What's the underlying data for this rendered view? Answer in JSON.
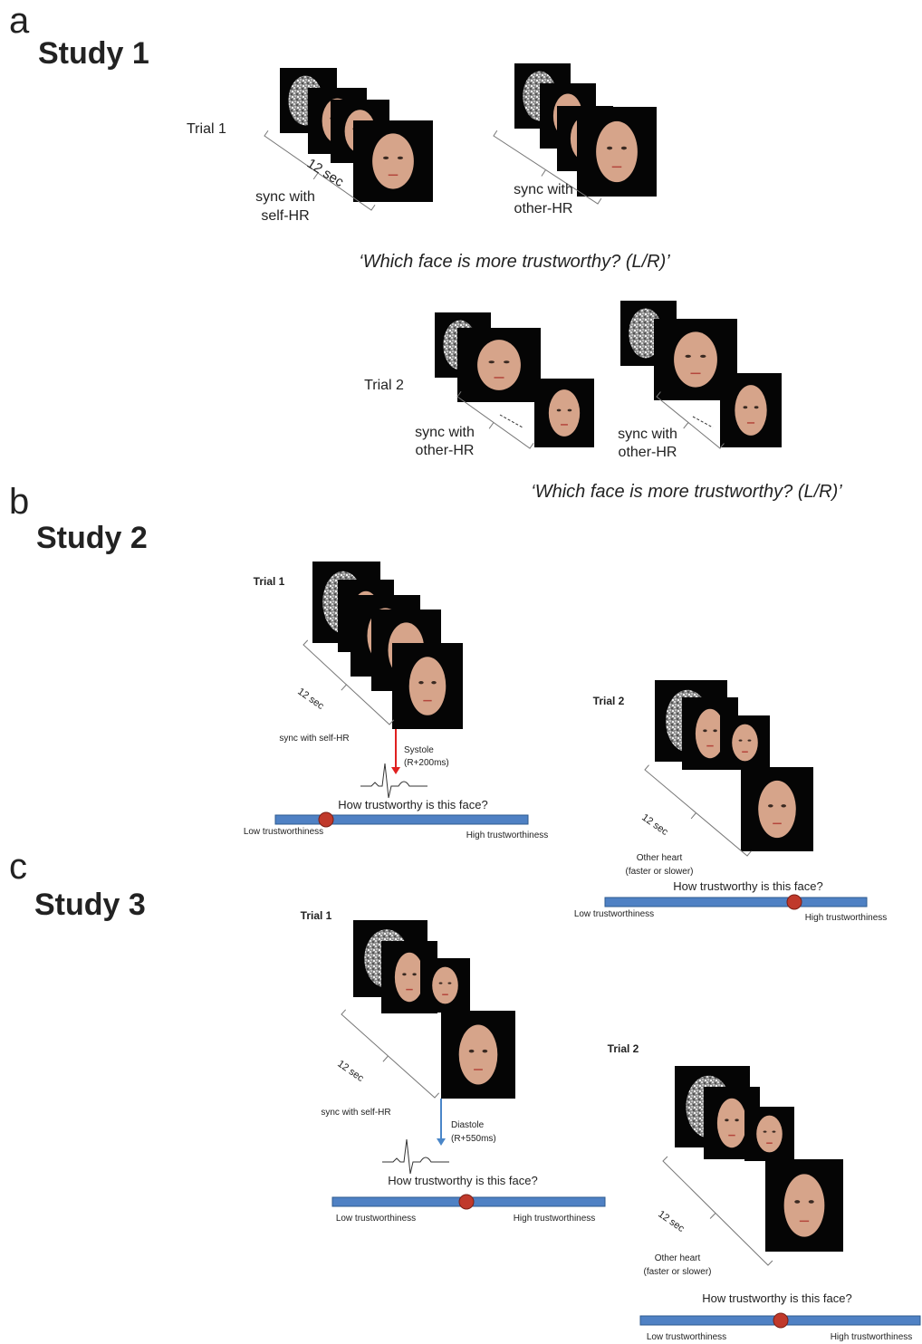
{
  "panels": [
    {
      "letter": "a",
      "title": "Study 1",
      "trial1": {
        "label": "Trial 1",
        "duration": "12 sec",
        "left_sync": [
          "sync with",
          "self-HR"
        ],
        "right_sync": [
          "sync with",
          "other-HR"
        ]
      },
      "question1": "‘Which face is more trustworthy? (L/R)’",
      "trial2": {
        "label": "Trial 2",
        "left_sync": [
          "sync with",
          "other-HR"
        ],
        "right_sync": [
          "sync with",
          "other-HR"
        ]
      },
      "question2": "‘Which face is more trustworthy? (L/R)’"
    },
    {
      "letter": "b",
      "title": "Study 2",
      "trial1": {
        "label": "Trial 1",
        "duration": "12 sec",
        "sync": "sync with self-HR",
        "phase": [
          "Systole",
          "(R+200ms)"
        ],
        "rating": {
          "question": "How trustworthy is this face?",
          "low": "Low trustworthiness",
          "high": "High trustworthiness"
        }
      },
      "trial2": {
        "label": "Trial 2",
        "duration": "12 sec",
        "sync": [
          "Other heart",
          "(faster or slower)"
        ],
        "rating": {
          "question": "How trustworthy is this face?",
          "low": "Low trustworthiness",
          "high": "High trustworthiness"
        }
      }
    },
    {
      "letter": "c",
      "title": "Study 3",
      "trial1": {
        "label": "Trial 1",
        "duration": "12 sec",
        "sync": "sync with self-HR",
        "phase": [
          "Diastole",
          "(R+550ms)"
        ],
        "rating": {
          "question": "How trustworthy is this face?",
          "low": "Low trustworthiness",
          "high": "High trustworthiness"
        }
      },
      "trial2": {
        "label": "Trial 2",
        "duration": "12 sec",
        "sync": [
          "Other heart",
          "(faster or slower)"
        ],
        "rating": {
          "question": "How trustworthy is this face?",
          "low": "Low trustworthiness",
          "high": "High trustworthiness"
        }
      }
    }
  ]
}
